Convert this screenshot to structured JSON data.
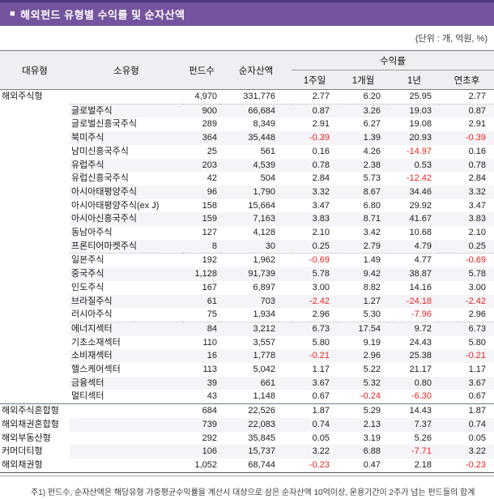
{
  "colors": {
    "title-bar-bg": "#74539F",
    "title-bar-edge": "#4F3579",
    "negative": "#E8251F",
    "stripe": "#F5F4F8",
    "header-bg": "#F0EEF2"
  },
  "header_bar": {
    "bullet": "■",
    "title": "해외펀드 유형별 수익률 및 순자산액"
  },
  "unit_note": "(단위 : 개, 억원, %)",
  "table": {
    "headers": {
      "major": "대유형",
      "minor": "소유형",
      "funds": "펀드수",
      "assets": "순자산액",
      "returns": "수익률",
      "sub_week": "1주일",
      "sub_month": "1개월",
      "sub_year": "1년",
      "sub_ytd": "연초후"
    },
    "rows": [
      {
        "major": "해외주식형",
        "minor": "",
        "funds": "4,970",
        "assets": "331,776",
        "w": "2.77",
        "m": "6.20",
        "y": "25.95",
        "ytd": "2.77"
      },
      {
        "major": "",
        "minor": "글로벌주식",
        "funds": "900",
        "assets": "66,684",
        "w": "0.87",
        "m": "3.26",
        "y": "19.03",
        "ytd": "0.87"
      },
      {
        "major": "",
        "minor": "글로벌신흥국주식",
        "funds": "289",
        "assets": "8,349",
        "w": "2.91",
        "m": "6.27",
        "y": "19.08",
        "ytd": "2.91"
      },
      {
        "major": "",
        "minor": "북미주식",
        "funds": "364",
        "assets": "35,448",
        "w": "-0.39",
        "m": "1.39",
        "y": "20.93",
        "ytd": "-0.39"
      },
      {
        "major": "",
        "minor": "남미신흥국주식",
        "funds": "25",
        "assets": "561",
        "w": "0.16",
        "m": "4.26",
        "y": "-14.97",
        "ytd": "0.16"
      },
      {
        "major": "",
        "minor": "유럽주식",
        "funds": "203",
        "assets": "4,539",
        "w": "0.78",
        "m": "2.38",
        "y": "0.53",
        "ytd": "0.78"
      },
      {
        "major": "",
        "minor": "유럽신흥국주식",
        "funds": "42",
        "assets": "504",
        "w": "2.84",
        "m": "5.73",
        "y": "-12.42",
        "ytd": "2.84"
      },
      {
        "major": "",
        "minor": "아시아태평양주식",
        "funds": "96",
        "assets": "1,790",
        "w": "3.32",
        "m": "8.67",
        "y": "34.46",
        "ytd": "3.32"
      },
      {
        "major": "",
        "minor": "아시아태평양주식(ex J)",
        "funds": "158",
        "assets": "15,664",
        "w": "3.47",
        "m": "6.80",
        "y": "29.92",
        "ytd": "3.47"
      },
      {
        "major": "",
        "minor": "아시아신흥국주식",
        "funds": "159",
        "assets": "7,163",
        "w": "3.83",
        "m": "8.71",
        "y": "41.67",
        "ytd": "3.83"
      },
      {
        "major": "",
        "minor": "동남아주식",
        "funds": "127",
        "assets": "4,128",
        "w": "2.10",
        "m": "3.42",
        "y": "10.68",
        "ytd": "2.10"
      },
      {
        "major": "",
        "minor": "프론티어마켓주식",
        "funds": "8",
        "assets": "30",
        "w": "0.25",
        "m": "2.79",
        "y": "4.79",
        "ytd": "0.25"
      },
      {
        "major": "",
        "minor": "일본주식",
        "funds": "192",
        "assets": "1,962",
        "w": "-0.69",
        "m": "1.49",
        "y": "4.77",
        "ytd": "-0.69"
      },
      {
        "major": "",
        "minor": "중국주식",
        "funds": "1,128",
        "assets": "91,739",
        "w": "5.78",
        "m": "9.42",
        "y": "38.87",
        "ytd": "5.78"
      },
      {
        "major": "",
        "minor": "인도주식",
        "funds": "167",
        "assets": "6,897",
        "w": "3.00",
        "m": "8.82",
        "y": "14.16",
        "ytd": "3.00"
      },
      {
        "major": "",
        "minor": "브라질주식",
        "funds": "61",
        "assets": "703",
        "w": "-2.42",
        "m": "1.27",
        "y": "-24.18",
        "ytd": "-2.42"
      },
      {
        "major": "",
        "minor": "러시아주식",
        "funds": "75",
        "assets": "1,934",
        "w": "2.96",
        "m": "5.30",
        "y": "-7.96",
        "ytd": "2.96"
      },
      {
        "major": "",
        "minor": "에너지섹터",
        "funds": "84",
        "assets": "3,212",
        "w": "6.73",
        "m": "17.54",
        "y": "9.72",
        "ytd": "6.73"
      },
      {
        "major": "",
        "minor": "기초소재섹터",
        "funds": "110",
        "assets": "3,557",
        "w": "5.80",
        "m": "9.19",
        "y": "24.43",
        "ytd": "5.80"
      },
      {
        "major": "",
        "minor": "소비재섹터",
        "funds": "16",
        "assets": "1,778",
        "w": "-0.21",
        "m": "2.96",
        "y": "25.38",
        "ytd": "-0.21"
      },
      {
        "major": "",
        "minor": "헬스케어섹터",
        "funds": "113",
        "assets": "5,042",
        "w": "1.17",
        "m": "5.22",
        "y": "21.17",
        "ytd": "1.17"
      },
      {
        "major": "",
        "minor": "금융섹터",
        "funds": "39",
        "assets": "661",
        "w": "3.67",
        "m": "5.32",
        "y": "0.80",
        "ytd": "3.67"
      },
      {
        "major": "",
        "minor": "멀티섹터",
        "funds": "43",
        "assets": "1,148",
        "w": "0.67",
        "m": "-0.24",
        "y": "-6.30",
        "ytd": "0.67"
      },
      {
        "major": "해외주식혼합형",
        "minor": "",
        "funds": "684",
        "assets": "22,526",
        "w": "1.87",
        "m": "5.29",
        "y": "14.43",
        "ytd": "1.87"
      },
      {
        "major": "해외채권혼합형",
        "minor": "",
        "funds": "739",
        "assets": "22,083",
        "w": "0.74",
        "m": "2.13",
        "y": "7.37",
        "ytd": "0.74"
      },
      {
        "major": "해외부동산형",
        "minor": "",
        "funds": "292",
        "assets": "35,845",
        "w": "0.05",
        "m": "3.19",
        "y": "5.26",
        "ytd": "0.05"
      },
      {
        "major": "커머더티형",
        "minor": "",
        "funds": "106",
        "assets": "15,737",
        "w": "3.22",
        "m": "6.88",
        "y": "-7.71",
        "ytd": "3.22"
      },
      {
        "major": "해외채권형",
        "minor": "",
        "funds": "1,052",
        "assets": "68,744",
        "w": "-0.23",
        "m": "0.47",
        "y": "2.18",
        "ytd": "-0.23"
      }
    ]
  },
  "footnote": "주1) 펀드수, 순자산액은 해당유형 가중평균수익률을 계산시 대상으로 삼은 순자산액 10억이상, 운용기간이 2주가 넘는 펀드들의 합계"
}
